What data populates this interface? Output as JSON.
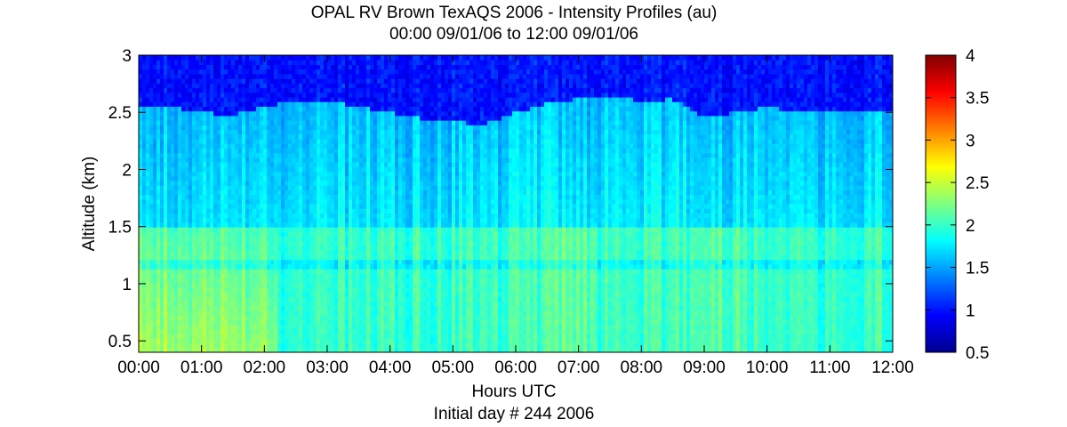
{
  "chart_data": {
    "type": "heatmap",
    "title": "OPAL RV Brown TexAQS 2006 - Intensity Profiles (au)",
    "subtitle": "00:00 09/01/06 to 12:00 09/01/06",
    "xlabel": "Hours UTC",
    "xlabel2": "Initial day # 244  2006",
    "ylabel": "Altitude (km)",
    "x_ticks": [
      "00:00",
      "01:00",
      "02:00",
      "03:00",
      "04:00",
      "05:00",
      "06:00",
      "07:00",
      "08:00",
      "09:00",
      "10:00",
      "11:00",
      "12:00"
    ],
    "xlim": [
      0,
      12
    ],
    "y_ticks": [
      "0.5",
      "1",
      "1.5",
      "2",
      "2.5",
      "3"
    ],
    "y_tick_values": [
      0.5,
      1,
      1.5,
      2,
      2.5,
      3
    ],
    "ylim": [
      0.4,
      3.0
    ],
    "colorbar": {
      "ticks": [
        "0.5",
        "1",
        "1.5",
        "2",
        "2.5",
        "3",
        "3.5",
        "4"
      ],
      "tick_values": [
        0.5,
        1,
        1.5,
        2,
        2.5,
        3,
        3.5,
        4
      ],
      "range": [
        0.5,
        4
      ],
      "colormap": "jet"
    },
    "top_layer_height_km": {
      "hours": [
        0,
        0.5,
        1,
        1.5,
        2,
        2.5,
        3,
        3.5,
        4,
        4.5,
        5,
        5.5,
        6,
        6.5,
        7,
        7.5,
        8,
        8.5,
        9,
        9.5,
        10,
        10.5,
        11,
        11.5,
        12
      ],
      "values": [
        2.55,
        2.55,
        2.5,
        2.48,
        2.55,
        2.6,
        2.6,
        2.55,
        2.5,
        2.45,
        2.42,
        2.4,
        2.5,
        2.58,
        2.62,
        2.65,
        2.6,
        2.62,
        2.45,
        2.5,
        2.55,
        2.5,
        2.5,
        2.5,
        2.5
      ]
    },
    "field_description_values": {
      "upper_free_troposphere": 1.0,
      "mid_layer": 1.6,
      "lower_boundary_layer": 2.0,
      "near_surface_max": 2.4
    }
  }
}
